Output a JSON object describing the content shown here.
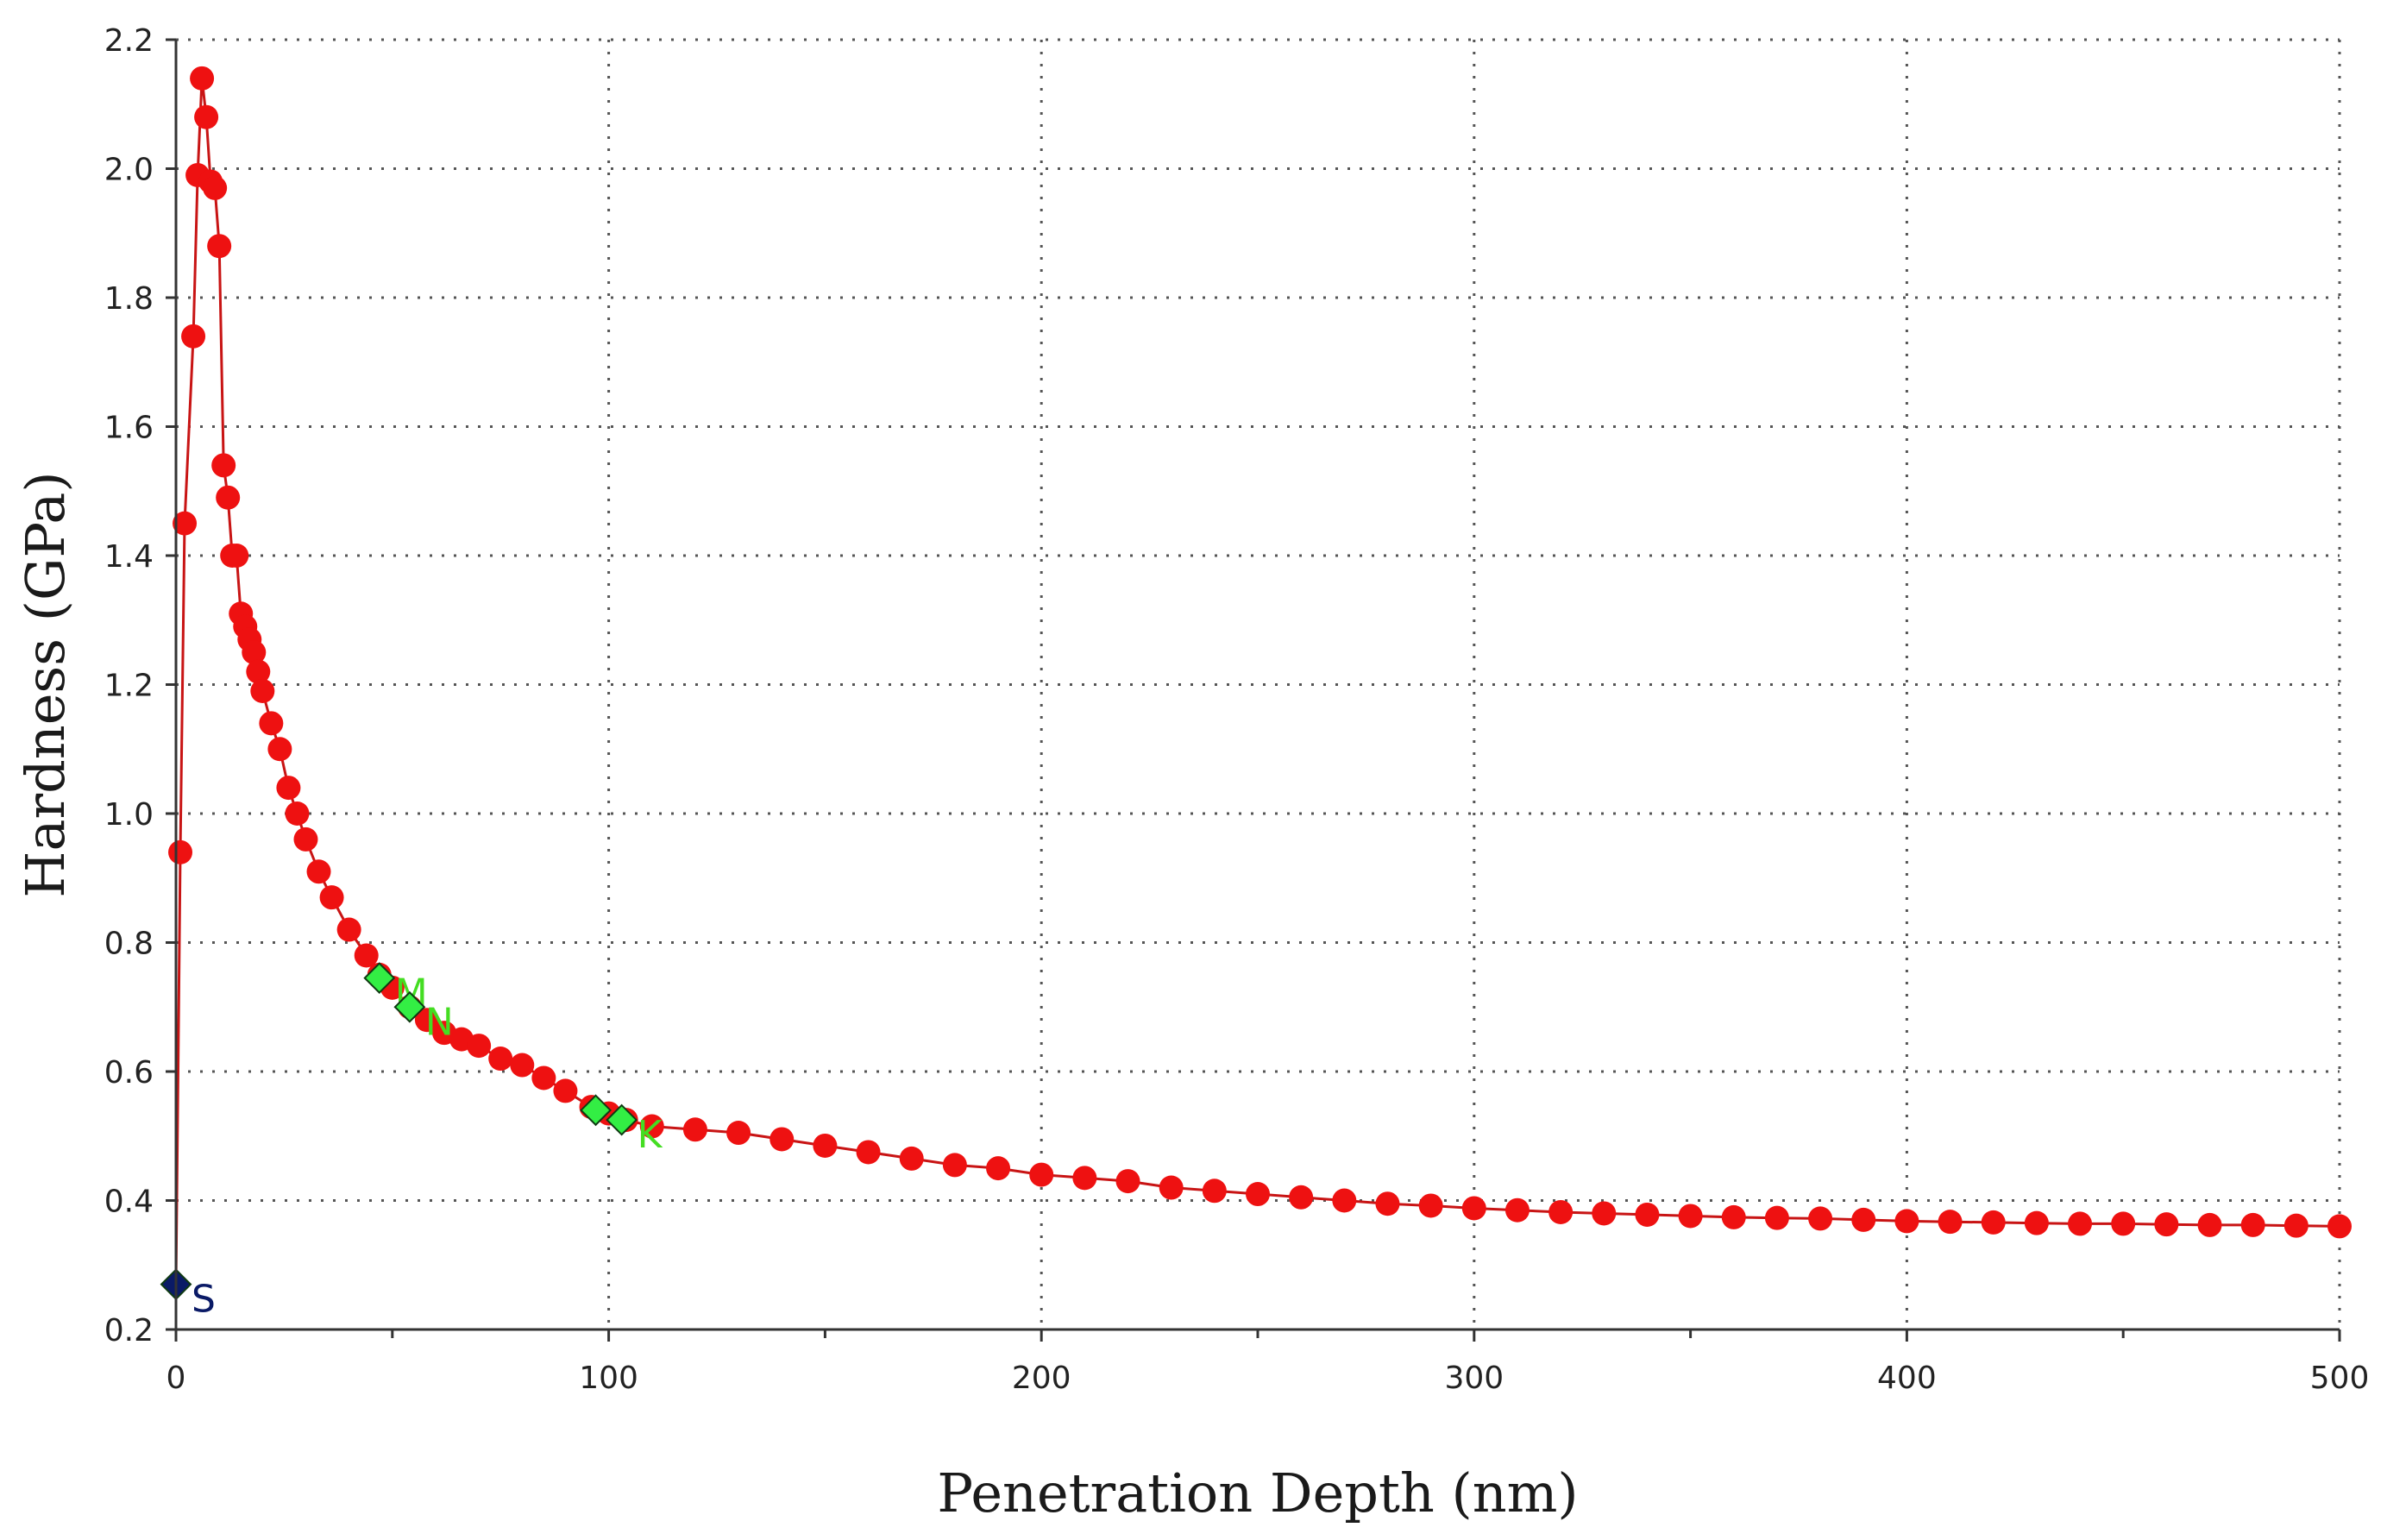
{
  "chart_data": {
    "type": "scatter",
    "title": "",
    "xlabel": "Penetration Depth (nm)",
    "ylabel": "Hardness (GPa)",
    "xlim": [
      0,
      500
    ],
    "ylim": [
      0.2,
      2.2
    ],
    "x_ticks": [
      0,
      100,
      200,
      300,
      400,
      500
    ],
    "x_tick_labels": [
      "0",
      "100",
      "200",
      "300",
      "400",
      "500"
    ],
    "y_ticks": [
      0.2,
      0.4,
      0.6,
      0.8,
      1.0,
      1.2,
      1.4,
      1.6,
      1.8,
      2.0,
      2.2
    ],
    "y_tick_labels": [
      "0.2",
      "0.4",
      "0.6",
      "0.8",
      "1.0",
      "1.2",
      "1.4",
      "1.6",
      "1.8",
      "2.0",
      "2.2"
    ],
    "grid": true,
    "legend": "none",
    "colors": {
      "series": "#ee1111",
      "line": "#c81414",
      "marker_green": "#33ee44",
      "marker_start": "#0a1a66",
      "grid": "#555555",
      "axis": "#333333"
    },
    "series": [
      {
        "points": [
          [
            0,
            0.27
          ],
          [
            1,
            0.94
          ],
          [
            2,
            1.45
          ],
          [
            4,
            1.74
          ],
          [
            5,
            1.99
          ],
          [
            6,
            2.14
          ],
          [
            7,
            2.08
          ],
          [
            8,
            1.98
          ],
          [
            9,
            1.97
          ],
          [
            10,
            1.88
          ],
          [
            11,
            1.54
          ],
          [
            12,
            1.49
          ],
          [
            13,
            1.4
          ],
          [
            14,
            1.4
          ],
          [
            15,
            1.31
          ],
          [
            16,
            1.29
          ],
          [
            17,
            1.27
          ],
          [
            18,
            1.25
          ],
          [
            19,
            1.22
          ],
          [
            20,
            1.19
          ],
          [
            22,
            1.14
          ],
          [
            24,
            1.1
          ],
          [
            26,
            1.04
          ],
          [
            28,
            1.0
          ],
          [
            30,
            0.96
          ],
          [
            33,
            0.91
          ],
          [
            36,
            0.87
          ],
          [
            40,
            0.82
          ],
          [
            44,
            0.78
          ],
          [
            47,
            0.75
          ],
          [
            50,
            0.73
          ],
          [
            54,
            0.7
          ],
          [
            58,
            0.68
          ],
          [
            62,
            0.66
          ],
          [
            66,
            0.65
          ],
          [
            70,
            0.64
          ],
          [
            75,
            0.62
          ],
          [
            80,
            0.61
          ],
          [
            85,
            0.59
          ],
          [
            90,
            0.57
          ],
          [
            96,
            0.545
          ],
          [
            100,
            0.535
          ],
          [
            104,
            0.525
          ],
          [
            110,
            0.515
          ],
          [
            120,
            0.51
          ],
          [
            130,
            0.505
          ],
          [
            140,
            0.495
          ],
          [
            150,
            0.485
          ],
          [
            160,
            0.475
          ],
          [
            170,
            0.465
          ],
          [
            180,
            0.455
          ],
          [
            190,
            0.45
          ],
          [
            200,
            0.44
          ],
          [
            210,
            0.435
          ],
          [
            220,
            0.43
          ],
          [
            230,
            0.42
          ],
          [
            240,
            0.415
          ],
          [
            250,
            0.41
          ],
          [
            260,
            0.405
          ],
          [
            270,
            0.4
          ],
          [
            280,
            0.395
          ],
          [
            290,
            0.392
          ],
          [
            300,
            0.388
          ],
          [
            310,
            0.385
          ],
          [
            320,
            0.382
          ],
          [
            330,
            0.38
          ],
          [
            340,
            0.378
          ],
          [
            350,
            0.376
          ],
          [
            360,
            0.374
          ],
          [
            370,
            0.373
          ],
          [
            380,
            0.372
          ],
          [
            390,
            0.37
          ],
          [
            400,
            0.368
          ],
          [
            410,
            0.367
          ],
          [
            420,
            0.366
          ],
          [
            430,
            0.365
          ],
          [
            440,
            0.364
          ],
          [
            450,
            0.364
          ],
          [
            460,
            0.363
          ],
          [
            470,
            0.362
          ],
          [
            480,
            0.362
          ],
          [
            490,
            0.361
          ],
          [
            500,
            0.36
          ]
        ]
      }
    ],
    "markers": [
      {
        "label": "S",
        "x": 0,
        "y": 0.27,
        "color": "#0a1a66",
        "label_color": "#0a1a66"
      },
      {
        "label": "M",
        "x": 47,
        "y": 0.745,
        "color": "#33ee44",
        "label_color": "#44dd22"
      },
      {
        "label": "N",
        "x": 54,
        "y": 0.7,
        "color": "#33ee44",
        "label_color": "#44dd22"
      },
      {
        "label": "",
        "x": 97,
        "y": 0.54,
        "color": "#33ee44",
        "label_color": "#44dd22"
      },
      {
        "label": "K",
        "x": 103,
        "y": 0.525,
        "color": "#33ee44",
        "label_color": "#44dd22"
      }
    ]
  }
}
